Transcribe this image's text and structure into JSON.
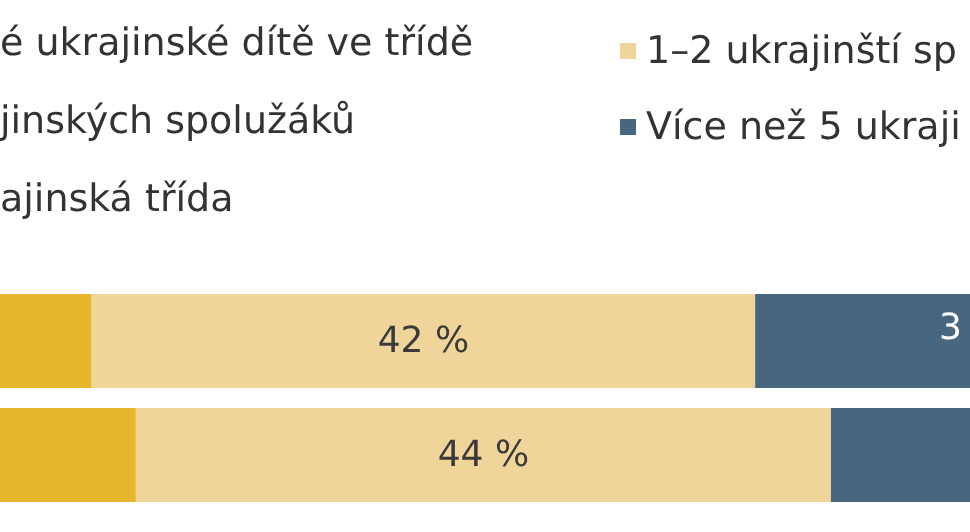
{
  "chart_data": {
    "type": "bar",
    "orientation": "horizontal",
    "stacked": true,
    "categories": [
      null,
      null
    ],
    "series": [
      {
        "color": "#e8b62c",
        "values": [
          5.8,
          8.6
        ]
      },
      {
        "name": "1–2 ukrajinští sp",
        "color": "#f0d59a",
        "values": [
          42,
          44
        ],
        "value_labels": [
          "42 %",
          "44 %"
        ]
      },
      {
        "name": "Více než 5 ukraji",
        "color": "#46677f",
        "values": [
          13.6,
          8.8
        ]
      }
    ],
    "tick_labels": false,
    "grid": false,
    "legend": "top right",
    "annotations": [
      "é ukrajinské dítě ve třídě",
      "jinských spolužáků",
      "ajinská třída",
      "3"
    ]
  }
}
